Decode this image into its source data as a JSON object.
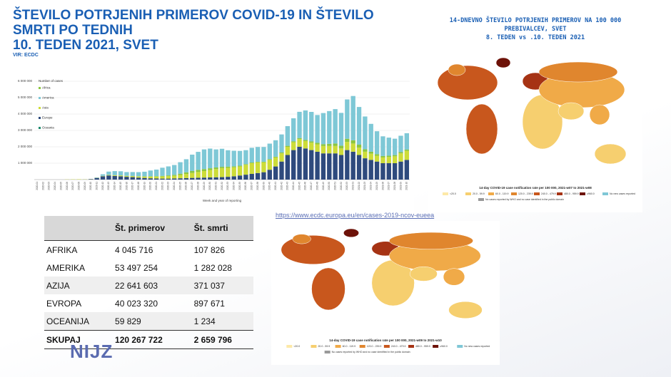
{
  "header": {
    "title_lines": [
      "ŠTEVILO POTRJENIH PRIMEROV COVID-19 IN ŠTEVILO",
      "SMRTI PO TEDNIH",
      "10. TEDEN 2021, SVET"
    ],
    "source": "VIR:  ECDC"
  },
  "chart_data": {
    "type": "bar",
    "stacked": true,
    "legend_title": "Number of cases",
    "x_label": "Week and year of reporting",
    "categories": [
      "2020-01",
      "2020-02",
      "2020-03",
      "2020-04",
      "2020-05",
      "2020-06",
      "2020-07",
      "2020-08",
      "2020-09",
      "2020-10",
      "2020-11",
      "2020-12",
      "2020-13",
      "2020-14",
      "2020-15",
      "2020-16",
      "2020-17",
      "2020-18",
      "2020-19",
      "2020-20",
      "2020-21",
      "2020-22",
      "2020-23",
      "2020-24",
      "2020-25",
      "2020-26",
      "2020-27",
      "2020-28",
      "2020-29",
      "2020-30",
      "2020-31",
      "2020-32",
      "2020-33",
      "2020-34",
      "2020-35",
      "2020-36",
      "2020-37",
      "2020-38",
      "2020-39",
      "2020-40",
      "2020-41",
      "2020-42",
      "2020-43",
      "2020-44",
      "2020-45",
      "2020-46",
      "2020-47",
      "2020-48",
      "2020-49",
      "2020-50",
      "2020-51",
      "2020-52",
      "2020-53",
      "2021-01",
      "2021-02",
      "2021-03",
      "2021-04",
      "2021-05",
      "2021-06",
      "2021-07",
      "2021-08",
      "2021-09",
      "2021-10"
    ],
    "series": [
      {
        "name": "Africa",
        "color": "#8dc63f",
        "values": [
          0,
          0,
          0,
          0,
          0,
          0,
          0,
          0,
          0,
          100,
          1000,
          3000,
          5000,
          6000,
          7000,
          8000,
          10000,
          15000,
          20000,
          25000,
          30000,
          35000,
          45000,
          60000,
          80000,
          100000,
          120000,
          130000,
          120000,
          110000,
          100000,
          80000,
          70000,
          60000,
          50000,
          45000,
          40000,
          40000,
          40000,
          45000,
          50000,
          55000,
          60000,
          60000,
          65000,
          70000,
          80000,
          90000,
          110000,
          130000,
          150000,
          170000,
          190000,
          200000,
          180000,
          150000,
          120000,
          100000,
          90000,
          80000,
          75000,
          75000,
          80000
        ]
      },
      {
        "name": "America",
        "color": "#7ec8d6",
        "values": [
          0,
          0,
          0,
          0,
          0,
          0,
          0,
          0,
          100,
          1000,
          20000,
          100000,
          200000,
          250000,
          250000,
          230000,
          240000,
          250000,
          280000,
          350000,
          400000,
          500000,
          550000,
          600000,
          700000,
          800000,
          1000000,
          1100000,
          1200000,
          1200000,
          1100000,
          1100000,
          1000000,
          950000,
          900000,
          850000,
          900000,
          900000,
          900000,
          950000,
          1000000,
          1100000,
          1200000,
          1400000,
          1600000,
          1800000,
          1800000,
          1700000,
          1900000,
          2000000,
          2100000,
          2000000,
          2400000,
          2700000,
          2300000,
          2000000,
          1700000,
          1400000,
          1200000,
          1100000,
          1000000,
          1000000,
          1000000
        ]
      },
      {
        "name": "Asia",
        "color": "#cddc39",
        "values": [
          0,
          0,
          0,
          0,
          100,
          10000,
          15000,
          20000,
          10000,
          8000,
          10000,
          20000,
          30000,
          40000,
          50000,
          50000,
          60000,
          70000,
          80000,
          100000,
          110000,
          130000,
          150000,
          160000,
          200000,
          250000,
          300000,
          350000,
          400000,
          450000,
          500000,
          550000,
          550000,
          550000,
          550000,
          600000,
          650000,
          650000,
          600000,
          600000,
          550000,
          500000,
          500000,
          480000,
          470000,
          450000,
          450000,
          450000,
          450000,
          450000,
          450000,
          400000,
          500000,
          500000,
          450000,
          400000,
          380000,
          350000,
          350000,
          380000,
          420000,
          500000,
          550000
        ]
      },
      {
        "name": "Europe",
        "color": "#2e4a7d",
        "values": [
          0,
          0,
          0,
          0,
          0,
          0,
          0,
          0,
          5000,
          30000,
          100000,
          200000,
          250000,
          220000,
          200000,
          170000,
          150000,
          120000,
          100000,
          80000,
          70000,
          60000,
          60000,
          70000,
          80000,
          90000,
          100000,
          110000,
          120000,
          130000,
          140000,
          150000,
          170000,
          200000,
          250000,
          300000,
          350000,
          400000,
          450000,
          600000,
          800000,
          1100000,
          1500000,
          1800000,
          2000000,
          1900000,
          1800000,
          1700000,
          1600000,
          1600000,
          1600000,
          1500000,
          1800000,
          1700000,
          1500000,
          1300000,
          1200000,
          1100000,
          1000000,
          1000000,
          1000000,
          1100000,
          1200000
        ]
      },
      {
        "name": "Oceania",
        "color": "#1e8c6e",
        "values": [
          0,
          0,
          0,
          0,
          0,
          0,
          0,
          0,
          0,
          100,
          500,
          2000,
          3000,
          2000,
          1000,
          500,
          200,
          100,
          100,
          100,
          100,
          200,
          300,
          500,
          1000,
          2000,
          3000,
          3000,
          2000,
          1500,
          1000,
          500,
          300,
          200,
          200,
          200,
          200,
          200,
          200,
          200,
          200,
          200,
          200,
          200,
          200,
          200,
          200,
          200,
          200,
          200,
          200,
          200,
          200,
          200,
          200,
          200,
          200,
          200,
          200,
          200,
          200,
          200,
          200
        ]
      }
    ],
    "ylim": [
      0,
      6000000
    ],
    "yticks": [
      {
        "value": 1000000,
        "label": "1 000 000"
      },
      {
        "value": 2000000,
        "label": "2 000 000"
      },
      {
        "value": 3000000,
        "label": "3 000 000"
      },
      {
        "value": 4000000,
        "label": "4 000 000"
      },
      {
        "value": 5000000,
        "label": "5 000 000"
      },
      {
        "value": 6000000,
        "label": "6 000 000"
      }
    ]
  },
  "map_top": {
    "title_lines": [
      "14-DNEVNO  ŠTEVILO POTRJENIH PRIMEROV NA 100 000",
      "PREBIVALCEV, SVET",
      "8. TEDEN  vs .10. TEDEN  2021"
    ],
    "legend_title": "14-day COVID-19 case notification rate per 100 000, 2021-w07 to 2021-w08"
  },
  "map_bottom": {
    "link": "https://www.ecdc.europa.eu/en/cases-2019-ncov-eueea",
    "legend_title": "14-day COVID-19 case notification rate per 100 000, 2021-w09 to 2021-w10"
  },
  "map_legend": [
    "<20.0",
    "20.0 - 59.9",
    "60.0 - 119.9",
    "120.0 - 239.9",
    "240.0 - 479.9",
    "480.0 - 959.9",
    "≥960.0",
    "No new cases reported",
    "No cases reported by WHO and no case identified in the public domain"
  ],
  "table": {
    "header": [
      "Št. primerov",
      "Št. smrti"
    ],
    "rows": [
      [
        "AFRIKA",
        "4 045 716",
        "107 826"
      ],
      [
        "AMERIKA",
        "53 497 254",
        "1 282 028"
      ],
      [
        "AZIJA",
        "22 641 603",
        "371 037"
      ],
      [
        "EVROPA",
        "40 023 320",
        "897 671"
      ],
      [
        "OCEANIJA",
        "59 829",
        "1 234"
      ],
      [
        "SKUPAJ",
        "120 267 722",
        "2 659 796"
      ]
    ]
  },
  "logo": "NIJZ"
}
